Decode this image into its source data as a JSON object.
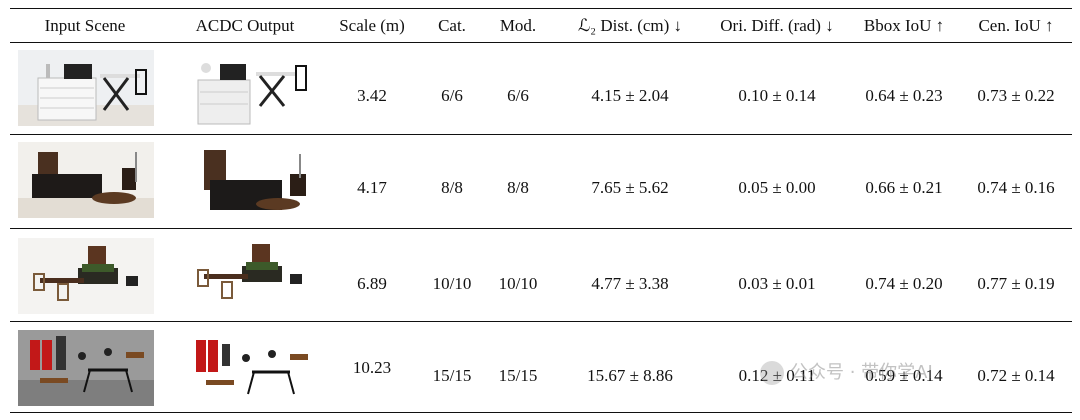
{
  "table": {
    "headers": [
      "Input Scene",
      "ACDC Output",
      "Scale (m)",
      "Cat.",
      "Mod.",
      "ℒ₂ Dist. (cm) ↓",
      "Ori. Diff. (rad) ↓",
      "Bbox IoU ↑",
      "Cen. IoU ↑"
    ],
    "rows": [
      {
        "scale": "3.42",
        "cat": "6/6",
        "mod": "6/6",
        "l2": "4.15 ± 2.04",
        "ori": "0.10 ± 0.14",
        "bbox": "0.64 ± 0.23",
        "cen": "0.73 ± 0.22"
      },
      {
        "scale": "4.17",
        "cat": "8/8",
        "mod": "8/8",
        "l2": "7.65 ± 5.62",
        "ori": "0.05 ± 0.00",
        "bbox": "0.66 ± 0.21",
        "cen": "0.74 ± 0.16"
      },
      {
        "scale": "6.89",
        "cat": "10/10",
        "mod": "10/10",
        "l2": "4.77 ± 3.38",
        "ori": "0.03 ± 0.01",
        "bbox": "0.74 ± 0.20",
        "cen": "0.77 ± 0.19"
      },
      {
        "scale": "10.23",
        "cat": "15/15",
        "mod": "15/15",
        "l2": "15.67 ± 8.86",
        "ori": "0.12 ± 0.11",
        "bbox": "0.59 ± 0.14",
        "cen": "0.72 ± 0.14"
      }
    ]
  },
  "watermark": {
    "text": "公众号 · 带你学AI"
  }
}
